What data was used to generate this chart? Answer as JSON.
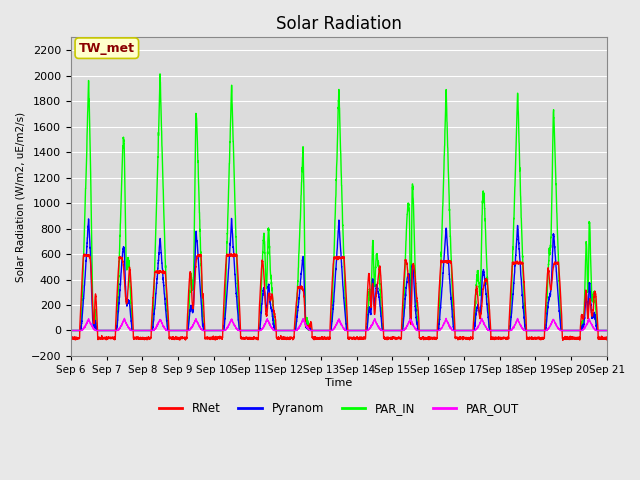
{
  "title": "Solar Radiation",
  "ylabel": "Solar Radiation (W/m2, uE/m2/s)",
  "xlabel": "Time",
  "ylim": [
    -200,
    2300
  ],
  "yticks": [
    -200,
    0,
    200,
    400,
    600,
    800,
    1000,
    1200,
    1400,
    1600,
    1800,
    2000,
    2200
  ],
  "xtick_labels": [
    "Sep 6",
    "Sep 7",
    "Sep 8",
    "Sep 9",
    "Sep 10",
    "Sep 11",
    "Sep 12",
    "Sep 13",
    "Sep 14",
    "Sep 15",
    "Sep 16",
    "Sep 17",
    "Sep 18",
    "Sep 19",
    "Sep 20",
    "Sep 21"
  ],
  "annotation_text": "TW_met",
  "annotation_color": "#8B0000",
  "annotation_bg": "#FFFFCC",
  "annotation_edge": "#C8C800",
  "colors": {
    "RNet": "#FF0000",
    "Pyranom": "#0000FF",
    "PAR_IN": "#00FF00",
    "PAR_OUT": "#FF00FF"
  },
  "line_width": 1.0,
  "bg_color": "#E8E8E8",
  "plot_bg_color": "#DCDCDC",
  "n_days": 15,
  "grid_color": "#FFFFFF",
  "title_fontsize": 12,
  "figwidth": 6.4,
  "figheight": 4.8,
  "dpi": 100
}
